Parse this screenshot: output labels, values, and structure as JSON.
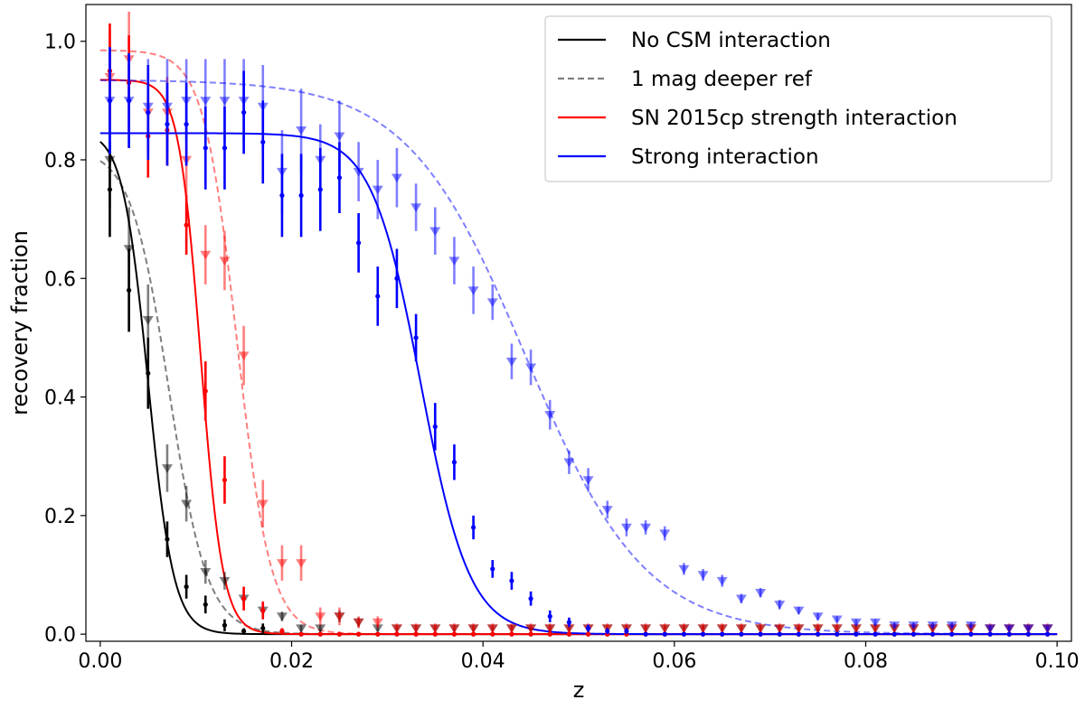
{
  "chart_data": {
    "type": "line",
    "title": "",
    "xlabel": "z",
    "ylabel": "recovery fraction",
    "xlim": [
      -0.0015,
      0.1015
    ],
    "ylim": [
      -0.012,
      1.062
    ],
    "xticks": [
      0.0,
      0.02,
      0.04,
      0.06,
      0.08,
      0.1
    ],
    "xtick_labels": [
      "0.00",
      "0.02",
      "0.04",
      "0.06",
      "0.08",
      "0.10"
    ],
    "yticks": [
      0.0,
      0.2,
      0.4,
      0.6,
      0.8,
      1.0
    ],
    "ytick_labels": [
      "0.0",
      "0.2",
      "0.4",
      "0.6",
      "0.8",
      "1.0"
    ],
    "legend_position": "top-right",
    "legend": [
      {
        "label": "No CSM interaction",
        "color": "#000000",
        "dash": false,
        "alpha": 1
      },
      {
        "label": "1 mag deeper ref",
        "color": "#000000",
        "dash": true,
        "alpha": 0.5
      },
      {
        "label": "SN 2015cp strength interaction",
        "color": "#ff0000",
        "dash": false,
        "alpha": 1
      },
      {
        "label": "Strong interaction",
        "color": "#0000ff",
        "dash": false,
        "alpha": 1
      }
    ],
    "series": [
      {
        "name": "No CSM interaction",
        "color": "#000000",
        "kind": "fit",
        "dash": false,
        "alpha": 1,
        "A": 0.85,
        "z0": 0.005,
        "w": 0.00133
      },
      {
        "name": "No CSM interaction (1 mag deeper ref)",
        "color": "#000000",
        "kind": "fit",
        "dash": true,
        "alpha": 0.5,
        "A": 0.82,
        "z0": 0.0072,
        "w": 0.002
      },
      {
        "name": "SN 2015cp strength interaction",
        "color": "#ff0000",
        "kind": "fit",
        "dash": false,
        "alpha": 1,
        "A": 0.935,
        "z0": 0.0105,
        "w": 0.00115
      },
      {
        "name": "SN 2015cp strength interaction (1 mag deeper ref)",
        "color": "#ff0000",
        "kind": "fit",
        "dash": true,
        "alpha": 0.5,
        "A": 0.985,
        "z0": 0.0143,
        "w": 0.00175
      },
      {
        "name": "Strong interaction",
        "color": "#0000ff",
        "kind": "fit",
        "dash": false,
        "alpha": 1,
        "A": 0.845,
        "z0": 0.0335,
        "w": 0.00255
      },
      {
        "name": "Strong interaction (1 mag deeper ref)",
        "color": "#0000ff",
        "kind": "fit",
        "dash": true,
        "alpha": 0.5,
        "A": 0.935,
        "z0": 0.0445,
        "w": 0.0062
      },
      {
        "name": "No CSM interaction data",
        "color": "#000000",
        "kind": "points",
        "marker": "dot",
        "alpha": 1,
        "x": [
          0.001,
          0.003,
          0.005,
          0.007,
          0.009,
          0.011,
          0.013,
          0.015,
          0.017,
          0.019,
          0.021,
          0.023,
          0.025,
          0.027,
          0.029,
          0.031,
          0.033,
          0.035,
          0.037,
          0.039,
          0.041,
          0.043,
          0.045,
          0.047,
          0.049,
          0.051,
          0.053,
          0.055,
          0.057,
          0.059,
          0.061,
          0.063,
          0.065,
          0.067,
          0.069,
          0.071,
          0.073,
          0.075,
          0.077,
          0.079,
          0.081,
          0.083,
          0.085,
          0.087,
          0.089,
          0.091,
          0.093,
          0.095,
          0.097,
          0.099
        ],
        "y": [
          0.75,
          0.58,
          0.44,
          0.16,
          0.08,
          0.05,
          0.015,
          0.005,
          0.01,
          0.005,
          0,
          0,
          0,
          0,
          0,
          0,
          0,
          0,
          0,
          0,
          0,
          0,
          0,
          0,
          0,
          0,
          0,
          0,
          0,
          0,
          0,
          0,
          0,
          0,
          0,
          0,
          0,
          0,
          0,
          0,
          0,
          0,
          0,
          0,
          0,
          0,
          0,
          0,
          0,
          0
        ],
        "err": [
          0.08,
          0.07,
          0.06,
          0.03,
          0.02,
          0.015,
          0.01,
          0.005,
          0.008,
          0.005,
          0,
          0,
          0,
          0,
          0,
          0,
          0,
          0,
          0,
          0,
          0,
          0,
          0,
          0,
          0,
          0,
          0,
          0,
          0,
          0,
          0,
          0,
          0,
          0,
          0,
          0,
          0,
          0,
          0,
          0,
          0,
          0,
          0,
          0,
          0,
          0,
          0,
          0,
          0,
          0
        ]
      },
      {
        "name": "No CSM interaction data (1 mag deeper ref)",
        "color": "#000000",
        "kind": "points",
        "marker": "triangle",
        "alpha": 0.5,
        "x": [
          0.001,
          0.003,
          0.005,
          0.007,
          0.009,
          0.011,
          0.013,
          0.015,
          0.017,
          0.019,
          0.021,
          0.023,
          0.025,
          0.027,
          0.029,
          0.031,
          0.033,
          0.035,
          0.037,
          0.039,
          0.041,
          0.043,
          0.045,
          0.047,
          0.049,
          0.051,
          0.053,
          0.055,
          0.057,
          0.059,
          0.061,
          0.063,
          0.065,
          0.067,
          0.069,
          0.071,
          0.073,
          0.075,
          0.077,
          0.079,
          0.081,
          0.083,
          0.085,
          0.087,
          0.089,
          0.091,
          0.093,
          0.095,
          0.097,
          0.099
        ],
        "y": [
          0.8,
          0.65,
          0.53,
          0.28,
          0.22,
          0.105,
          0.09,
          0.06,
          0.04,
          0.03,
          0.01,
          0.01,
          0.03,
          0.02,
          0.01,
          0.01,
          0.01,
          0.01,
          0.01,
          0.01,
          0.01,
          0.01,
          0.01,
          0.01,
          0.01,
          0.01,
          0.01,
          0.01,
          0.01,
          0.01,
          0.01,
          0.01,
          0.01,
          0.01,
          0.01,
          0.01,
          0.01,
          0.01,
          0.01,
          0.01,
          0.01,
          0.01,
          0.01,
          0.01,
          0.01,
          0.01,
          0.01,
          0.01,
          0.01,
          0.01
        ],
        "err": [
          0.08,
          0.07,
          0.06,
          0.04,
          0.03,
          0.02,
          0.015,
          0.012,
          0.01,
          0.008,
          0.006,
          0.006,
          0.01,
          0.008,
          0.005,
          0.005,
          0.005,
          0.005,
          0.005,
          0.005,
          0.005,
          0.005,
          0.005,
          0.005,
          0.005,
          0.005,
          0.005,
          0.005,
          0.005,
          0.005,
          0.005,
          0.005,
          0.005,
          0.005,
          0.005,
          0.005,
          0.005,
          0.005,
          0.005,
          0.005,
          0.005,
          0.005,
          0.005,
          0.005,
          0.005,
          0.005,
          0.005,
          0.005,
          0.005,
          0.005
        ]
      },
      {
        "name": "SN 2015cp strength interaction data",
        "color": "#ff0000",
        "kind": "points",
        "marker": "dot",
        "alpha": 1,
        "x": [
          0.001,
          0.003,
          0.005,
          0.007,
          0.009,
          0.011,
          0.013,
          0.015,
          0.017,
          0.019,
          0.021,
          0.023,
          0.025,
          0.027,
          0.029,
          0.031,
          0.033,
          0.035,
          0.037,
          0.039,
          0.041,
          0.043,
          0.045,
          0.047,
          0.049,
          0.051,
          0.053,
          0.055,
          0.057,
          0.059,
          0.061,
          0.063,
          0.065,
          0.067,
          0.069,
          0.071,
          0.073,
          0.075,
          0.077,
          0.079,
          0.081,
          0.083,
          0.085,
          0.087,
          0.089,
          0.091,
          0.093,
          0.095,
          0.097,
          0.099
        ],
        "y": [
          0.95,
          0.93,
          0.84,
          0.85,
          0.69,
          0.41,
          0.26,
          0.06,
          0.04,
          0.005,
          0,
          0,
          0,
          0,
          0,
          0,
          0,
          0,
          0,
          0,
          0,
          0,
          0,
          0,
          0,
          0,
          0,
          0,
          0,
          0,
          0,
          0,
          0,
          0,
          0,
          0,
          0,
          0,
          0,
          0,
          0,
          0,
          0,
          0,
          0,
          0,
          0,
          0,
          0,
          0
        ],
        "err": [
          0.08,
          0.08,
          0.07,
          0.06,
          0.05,
          0.05,
          0.04,
          0.02,
          0.015,
          0.005,
          0,
          0,
          0,
          0,
          0,
          0,
          0,
          0,
          0,
          0,
          0,
          0,
          0,
          0,
          0,
          0,
          0,
          0,
          0,
          0,
          0,
          0,
          0,
          0,
          0,
          0,
          0,
          0,
          0,
          0,
          0,
          0,
          0,
          0,
          0,
          0,
          0,
          0,
          0,
          0
        ]
      },
      {
        "name": "SN 2015cp strength interaction data (1 mag deeper ref)",
        "color": "#ff0000",
        "kind": "points",
        "marker": "triangle",
        "alpha": 0.5,
        "x": [
          0.001,
          0.003,
          0.005,
          0.007,
          0.009,
          0.011,
          0.013,
          0.015,
          0.017,
          0.019,
          0.021,
          0.023,
          0.025,
          0.027,
          0.029,
          0.031,
          0.033,
          0.035,
          0.037,
          0.039,
          0.041,
          0.043,
          0.045,
          0.047,
          0.049,
          0.051,
          0.053,
          0.055,
          0.057,
          0.059,
          0.061,
          0.063,
          0.065,
          0.067,
          0.069,
          0.071,
          0.073,
          0.075,
          0.077,
          0.079,
          0.081,
          0.083,
          0.085,
          0.087,
          0.089,
          0.091,
          0.093,
          0.095,
          0.097,
          0.099
        ],
        "y": [
          0.94,
          0.97,
          0.88,
          0.88,
          0.8,
          0.64,
          0.63,
          0.47,
          0.22,
          0.12,
          0.12,
          0.03,
          0.03,
          0.02,
          0.02,
          0.01,
          0.01,
          0.01,
          0.01,
          0.01,
          0.01,
          0.01,
          0.01,
          0.01,
          0.01,
          0.01,
          0.01,
          0.01,
          0.01,
          0.01,
          0.01,
          0.01,
          0.01,
          0.01,
          0.01,
          0.01,
          0.01,
          0.01,
          0.01,
          0.01,
          0.01,
          0.01,
          0.01,
          0.01,
          0.01,
          0.01,
          0.01,
          0.01,
          0.01,
          0.01
        ],
        "err": [
          0.08,
          0.08,
          0.07,
          0.06,
          0.06,
          0.05,
          0.05,
          0.05,
          0.04,
          0.03,
          0.03,
          0.015,
          0.015,
          0.01,
          0.01,
          0.008,
          0.008,
          0.008,
          0.008,
          0.008,
          0.008,
          0.008,
          0.008,
          0.008,
          0.008,
          0.008,
          0.008,
          0.008,
          0.008,
          0.008,
          0.008,
          0.008,
          0.008,
          0.008,
          0.008,
          0.008,
          0.008,
          0.008,
          0.008,
          0.008,
          0.008,
          0.008,
          0.008,
          0.008,
          0.008,
          0.008,
          0.008,
          0.008,
          0.008,
          0.008
        ]
      },
      {
        "name": "Strong interaction data",
        "color": "#0000ff",
        "kind": "points",
        "marker": "dot",
        "alpha": 1,
        "x": [
          0.001,
          0.003,
          0.005,
          0.007,
          0.009,
          0.011,
          0.013,
          0.015,
          0.017,
          0.019,
          0.021,
          0.023,
          0.025,
          0.027,
          0.029,
          0.031,
          0.033,
          0.035,
          0.037,
          0.039,
          0.041,
          0.043,
          0.045,
          0.047,
          0.049,
          0.051,
          0.053,
          0.055,
          0.057,
          0.059,
          0.061,
          0.063,
          0.065,
          0.067,
          0.069,
          0.071,
          0.073,
          0.075,
          0.077,
          0.079,
          0.081,
          0.083,
          0.085,
          0.087,
          0.089,
          0.091,
          0.093,
          0.095,
          0.097,
          0.099
        ],
        "y": [
          0.9,
          0.9,
          0.88,
          0.86,
          0.86,
          0.82,
          0.82,
          0.88,
          0.83,
          0.74,
          0.74,
          0.75,
          0.77,
          0.66,
          0.57,
          0.6,
          0.5,
          0.35,
          0.29,
          0.18,
          0.11,
          0.09,
          0.06,
          0.03,
          0.02,
          0.01,
          0.005,
          0.005,
          0,
          0,
          0,
          0,
          0,
          0,
          0,
          0,
          0,
          0,
          0,
          0,
          0,
          0,
          0,
          0,
          0,
          0,
          0,
          0,
          0,
          0
        ],
        "err": [
          0.09,
          0.08,
          0.08,
          0.07,
          0.07,
          0.07,
          0.07,
          0.07,
          0.07,
          0.07,
          0.07,
          0.07,
          0.06,
          0.05,
          0.05,
          0.05,
          0.04,
          0.04,
          0.03,
          0.02,
          0.015,
          0.015,
          0.012,
          0.01,
          0.008,
          0.006,
          0.005,
          0.005,
          0,
          0,
          0,
          0,
          0,
          0,
          0,
          0,
          0,
          0,
          0,
          0,
          0,
          0,
          0,
          0,
          0,
          0,
          0,
          0,
          0,
          0
        ]
      },
      {
        "name": "Strong interaction data (1 mag deeper ref)",
        "color": "#0000ff",
        "kind": "points",
        "marker": "triangle",
        "alpha": 0.5,
        "x": [
          0.001,
          0.003,
          0.005,
          0.007,
          0.009,
          0.011,
          0.013,
          0.015,
          0.017,
          0.019,
          0.021,
          0.023,
          0.025,
          0.027,
          0.029,
          0.031,
          0.033,
          0.035,
          0.037,
          0.039,
          0.041,
          0.043,
          0.045,
          0.047,
          0.049,
          0.051,
          0.053,
          0.055,
          0.057,
          0.059,
          0.061,
          0.063,
          0.065,
          0.067,
          0.069,
          0.071,
          0.073,
          0.075,
          0.077,
          0.079,
          0.081,
          0.083,
          0.085,
          0.087,
          0.089,
          0.091,
          0.093,
          0.095,
          0.097,
          0.099
        ],
        "y": [
          0.9,
          0.9,
          0.89,
          0.89,
          0.9,
          0.9,
          0.9,
          0.9,
          0.89,
          0.78,
          0.85,
          0.8,
          0.84,
          0.78,
          0.75,
          0.77,
          0.72,
          0.68,
          0.63,
          0.58,
          0.56,
          0.46,
          0.45,
          0.37,
          0.29,
          0.26,
          0.21,
          0.18,
          0.18,
          0.17,
          0.11,
          0.1,
          0.09,
          0.06,
          0.07,
          0.05,
          0.04,
          0.03,
          0.025,
          0.02,
          0.02,
          0.015,
          0.015,
          0.015,
          0.015,
          0.015,
          0.01,
          0.01,
          0.01,
          0.01
        ],
        "err": [
          0.09,
          0.08,
          0.08,
          0.08,
          0.07,
          0.07,
          0.07,
          0.07,
          0.07,
          0.07,
          0.07,
          0.06,
          0.06,
          0.05,
          0.05,
          0.05,
          0.04,
          0.04,
          0.04,
          0.04,
          0.03,
          0.03,
          0.03,
          0.025,
          0.02,
          0.02,
          0.015,
          0.015,
          0.012,
          0.012,
          0.01,
          0.01,
          0.01,
          0.008,
          0.008,
          0.008,
          0.006,
          0.006,
          0.005,
          0.005,
          0.005,
          0.005,
          0.005,
          0.005,
          0.005,
          0.005,
          0.005,
          0.005,
          0.005,
          0.005
        ]
      }
    ]
  }
}
